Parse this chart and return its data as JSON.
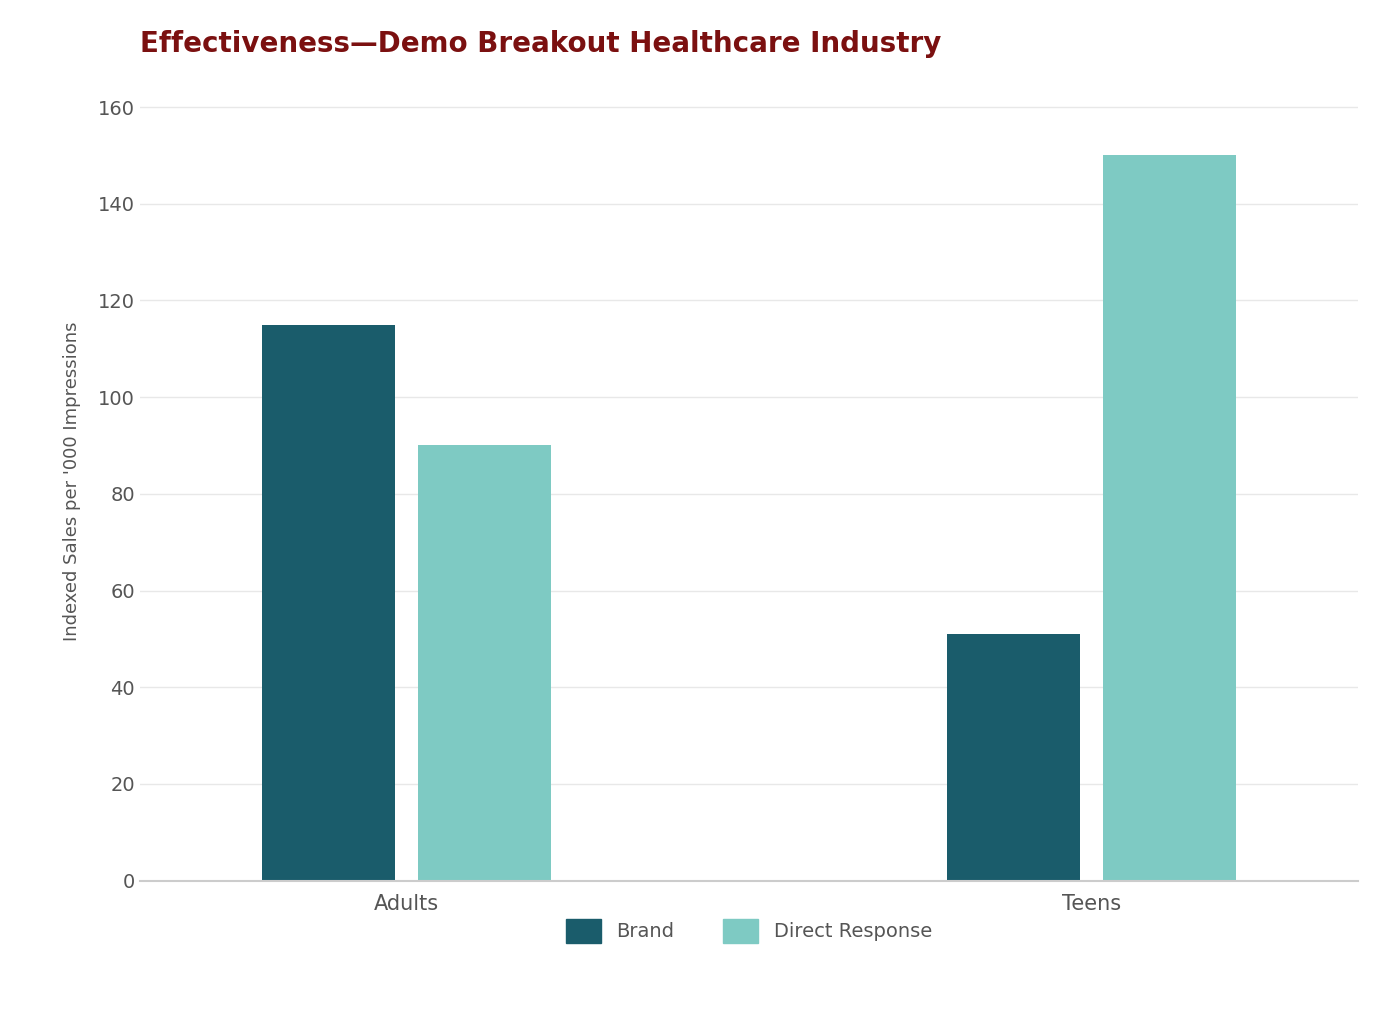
{
  "title": "Effectiveness—Demo Breakout Healthcare Industry",
  "title_color": "#7B1010",
  "title_fontsize": 20,
  "title_fontweight": "bold",
  "ylabel": "Indexed Sales per '000 Impressions",
  "ylabel_color": "#555555",
  "ylabel_fontsize": 13,
  "categories": [
    "Adults",
    "Teens"
  ],
  "brand_values": [
    115,
    51
  ],
  "direct_response_values": [
    90,
    150
  ],
  "brand_color": "#1A5C6B",
  "direct_response_color": "#7ECAC3",
  "ylim": [
    0,
    165
  ],
  "yticks": [
    0,
    20,
    40,
    60,
    80,
    100,
    120,
    140,
    160
  ],
  "tick_color": "#555555",
  "tick_fontsize": 14,
  "xtick_fontsize": 15,
  "xtick_color": "#555555",
  "legend_brand": "Brand",
  "legend_direct": "Direct Response",
  "legend_fontsize": 14,
  "background_color": "#ffffff",
  "bar_width": 0.35,
  "spine_color": "#cccccc",
  "grid_color": "#e8e8e8"
}
